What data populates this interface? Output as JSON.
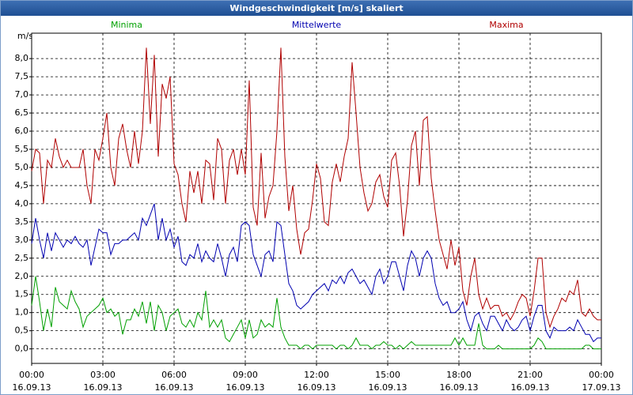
{
  "chart_data": {
    "type": "line",
    "title": "Windgeschwindigkeit [m/s] skaliert",
    "y_label": "m/s",
    "x": [
      0,
      10,
      20,
      30,
      40,
      50,
      60,
      70,
      80,
      90,
      100,
      110,
      120,
      130,
      140,
      150,
      160,
      170,
      180,
      190,
      200,
      210,
      220,
      230,
      240,
      250,
      260,
      270,
      280,
      290,
      300,
      310,
      320,
      330,
      340,
      350,
      360,
      370,
      380,
      390,
      400,
      410,
      420,
      430,
      440,
      450,
      460,
      470,
      480,
      490,
      500,
      510,
      520,
      530,
      540,
      550,
      560,
      570,
      580,
      590,
      600,
      610,
      620,
      630,
      640,
      650,
      660,
      670,
      680,
      690,
      700,
      710,
      720,
      730,
      740,
      750,
      760,
      770,
      780,
      790,
      800,
      810,
      820,
      830,
      840,
      850,
      860,
      870,
      880,
      890,
      900,
      910,
      920,
      930,
      940,
      950,
      960,
      970,
      980,
      990,
      1000,
      1010,
      1020,
      1030,
      1040,
      1050,
      1060,
      1070,
      1080,
      1090,
      1100,
      1110,
      1120,
      1130,
      1140,
      1150,
      1160,
      1170,
      1180,
      1190,
      1200,
      1210,
      1220,
      1230,
      1240,
      1250,
      1260,
      1270,
      1280,
      1290,
      1300,
      1310,
      1320,
      1330,
      1340,
      1350,
      1360,
      1370,
      1380,
      1390,
      1400,
      1410,
      1420,
      1430,
      1440
    ],
    "xlim": [
      0,
      1440
    ],
    "xticks": [
      {
        "value": 0,
        "label": "00:00"
      },
      {
        "value": 180,
        "label": "03:00"
      },
      {
        "value": 360,
        "label": "06:00"
      },
      {
        "value": 540,
        "label": "09:00"
      },
      {
        "value": 720,
        "label": "12:00"
      },
      {
        "value": 900,
        "label": "15:00"
      },
      {
        "value": 1080,
        "label": "18:00"
      },
      {
        "value": 1260,
        "label": "21:00"
      },
      {
        "value": 1440,
        "label": "00:00"
      }
    ],
    "xtick_dates": [
      "16.09.13",
      "16.09.13",
      "16.09.13",
      "16.09.13",
      "16.09.13",
      "16.09.13",
      "16.09.13",
      "16.09.13",
      "17.09.13"
    ],
    "ylim": [
      -0.4,
      8.7
    ],
    "yticks": [
      {
        "value": 0,
        "label": "0,0"
      },
      {
        "value": 0.5,
        "label": "0,5"
      },
      {
        "value": 1,
        "label": "1,0"
      },
      {
        "value": 1.5,
        "label": "1,5"
      },
      {
        "value": 2,
        "label": "2,0"
      },
      {
        "value": 2.5,
        "label": "2,5"
      },
      {
        "value": 3,
        "label": "3,0"
      },
      {
        "value": 3.5,
        "label": "3,5"
      },
      {
        "value": 4,
        "label": "4,0"
      },
      {
        "value": 4.5,
        "label": "4,5"
      },
      {
        "value": 5,
        "label": "5,0"
      },
      {
        "value": 5.5,
        "label": "5,5"
      },
      {
        "value": 6,
        "label": "6,0"
      },
      {
        "value": 6.5,
        "label": "6,5"
      },
      {
        "value": 7,
        "label": "7,0"
      },
      {
        "value": 7.5,
        "label": "7,5"
      },
      {
        "value": 8,
        "label": "8,0"
      }
    ],
    "grid": true,
    "series": [
      {
        "name": "Minima",
        "color": "#00a000",
        "values": [
          1.2,
          2.0,
          1.3,
          0.5,
          1.1,
          0.6,
          1.7,
          1.3,
          1.2,
          1.1,
          1.6,
          1.3,
          1.1,
          0.6,
          0.9,
          1.0,
          1.1,
          1.2,
          1.4,
          1.0,
          1.1,
          0.9,
          1.0,
          0.4,
          0.8,
          0.8,
          1.1,
          0.9,
          1.3,
          0.7,
          1.3,
          0.5,
          1.2,
          1.0,
          0.5,
          0.9,
          1.0,
          1.1,
          0.7,
          0.6,
          0.8,
          0.6,
          1.0,
          0.8,
          1.6,
          0.6,
          0.8,
          0.6,
          0.8,
          0.3,
          0.2,
          0.4,
          0.6,
          0.8,
          0.3,
          0.8,
          0.3,
          0.4,
          0.8,
          0.6,
          0.7,
          0.6,
          1.4,
          0.6,
          0.3,
          0.1,
          0.1,
          0.1,
          0.0,
          0.1,
          0.1,
          0.0,
          0.1,
          0.1,
          0.1,
          0.1,
          0.1,
          0.0,
          0.1,
          0.1,
          0.0,
          0.1,
          0.3,
          0.1,
          0.1,
          0.1,
          0.0,
          0.1,
          0.1,
          0.2,
          0.1,
          0.1,
          0.0,
          0.1,
          0.0,
          0.1,
          0.2,
          0.1,
          0.1,
          0.1,
          0.1,
          0.1,
          0.1,
          0.1,
          0.1,
          0.1,
          0.1,
          0.3,
          0.1,
          0.3,
          0.1,
          0.1,
          0.1,
          0.7,
          0.1,
          0.0,
          0.0,
          0.0,
          0.1,
          0.0,
          0.0,
          0.0,
          0.0,
          0.0,
          0.0,
          0.0,
          0.0,
          0.1,
          0.3,
          0.2,
          0.0,
          0.0,
          0.0,
          0.0,
          0.0,
          0.0,
          0.0,
          0.0,
          0.0,
          0.0,
          0.1,
          0.1,
          0.0,
          0.0,
          0.0
        ]
      },
      {
        "name": "Mittelwerte",
        "color": "#0000b0",
        "values": [
          2.9,
          3.6,
          3.0,
          2.5,
          3.2,
          2.7,
          3.2,
          3.0,
          2.8,
          3.0,
          2.9,
          3.1,
          2.9,
          2.8,
          3.0,
          2.3,
          2.8,
          3.3,
          3.2,
          3.2,
          2.6,
          2.9,
          2.9,
          3.0,
          3.0,
          3.1,
          3.2,
          3.0,
          3.6,
          3.4,
          3.7,
          4.0,
          3.0,
          3.6,
          3.0,
          3.3,
          2.8,
          3.1,
          2.4,
          2.3,
          2.6,
          2.5,
          2.9,
          2.4,
          2.7,
          2.5,
          2.4,
          2.9,
          2.5,
          2.0,
          2.6,
          2.8,
          2.4,
          3.4,
          3.5,
          3.4,
          2.6,
          2.3,
          2.0,
          2.6,
          2.7,
          2.4,
          3.5,
          3.4,
          2.6,
          1.8,
          1.6,
          1.2,
          1.1,
          1.2,
          1.3,
          1.5,
          1.6,
          1.7,
          1.8,
          1.6,
          1.9,
          1.8,
          2.0,
          1.8,
          2.1,
          2.2,
          2.0,
          1.8,
          1.9,
          1.7,
          1.5,
          2.0,
          2.2,
          1.8,
          2.0,
          2.4,
          2.4,
          2.0,
          1.6,
          2.3,
          2.7,
          2.5,
          2.0,
          2.5,
          2.7,
          2.5,
          1.8,
          1.4,
          1.2,
          1.3,
          1.0,
          1.0,
          1.1,
          1.3,
          0.8,
          0.5,
          0.9,
          1.0,
          0.7,
          0.5,
          0.9,
          0.9,
          0.7,
          0.5,
          0.8,
          0.6,
          0.5,
          0.6,
          0.8,
          0.9,
          0.5,
          0.9,
          1.2,
          1.2,
          0.5,
          0.3,
          0.6,
          0.5,
          0.5,
          0.5,
          0.6,
          0.5,
          0.8,
          0.6,
          0.4,
          0.4,
          0.2,
          0.3,
          0.3
        ]
      },
      {
        "name": "Maxima",
        "color": "#b00000",
        "values": [
          4.9,
          5.5,
          5.4,
          4.0,
          5.2,
          5.0,
          5.8,
          5.3,
          5.0,
          5.2,
          5.0,
          5.0,
          5.0,
          5.5,
          4.5,
          4.0,
          5.5,
          5.2,
          5.8,
          6.5,
          5.0,
          4.5,
          5.8,
          6.2,
          5.5,
          5.0,
          6.0,
          5.1,
          6.0,
          8.3,
          6.2,
          8.1,
          5.3,
          7.3,
          6.9,
          7.5,
          5.1,
          4.8,
          4.0,
          3.5,
          4.9,
          4.3,
          4.9,
          4.0,
          5.2,
          5.1,
          4.1,
          5.8,
          5.5,
          4.0,
          5.2,
          5.5,
          4.8,
          5.5,
          4.8,
          7.4,
          3.9,
          3.4,
          5.4,
          3.6,
          4.2,
          4.5,
          6.0,
          8.3,
          5.3,
          3.8,
          4.5,
          3.3,
          2.6,
          3.2,
          3.3,
          4.1,
          5.1,
          4.7,
          3.5,
          3.4,
          4.6,
          5.1,
          4.6,
          5.3,
          5.8,
          7.9,
          6.5,
          5.0,
          4.3,
          3.8,
          4.0,
          4.6,
          4.8,
          4.2,
          3.9,
          5.2,
          5.4,
          4.5,
          3.1,
          4.1,
          5.6,
          6.0,
          4.5,
          6.3,
          6.4,
          4.7,
          3.8,
          3.0,
          2.6,
          2.2,
          3.0,
          2.3,
          2.8,
          1.6,
          1.2,
          2.0,
          2.5,
          1.5,
          1.1,
          1.4,
          1.1,
          1.2,
          1.2,
          0.9,
          1.0,
          0.8,
          1.0,
          1.3,
          1.5,
          1.4,
          0.9,
          1.6,
          2.5,
          2.5,
          1.0,
          0.6,
          0.9,
          1.1,
          1.4,
          1.3,
          1.6,
          1.5,
          1.9,
          1.0,
          0.9,
          1.1,
          0.9,
          0.8,
          0.8
        ]
      }
    ]
  }
}
